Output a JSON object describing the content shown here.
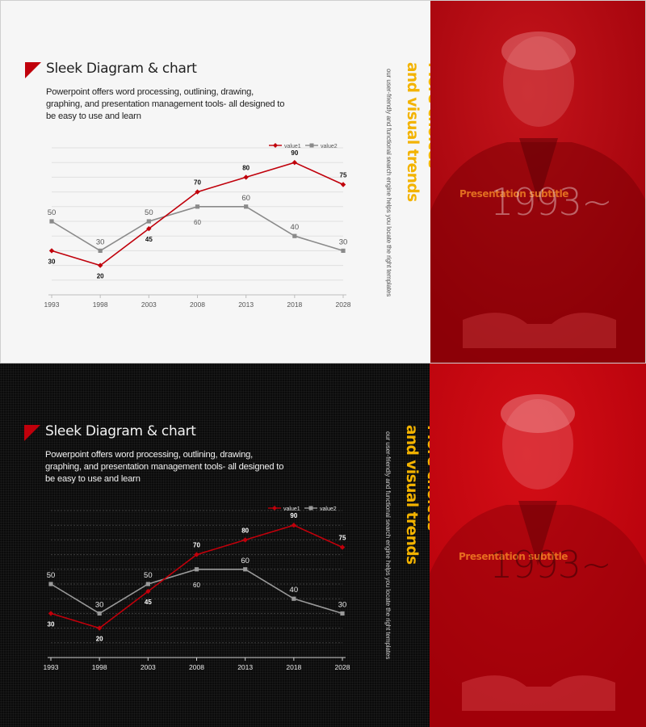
{
  "slides": {
    "title": "Sleek Diagram & chart",
    "description": "Powerpoint offers word processing, outlining, drawing, graphing, and presentation management tools- all designed to be easy to use and learn",
    "headline_line1": "More choices",
    "headline_line2": "and visual trends",
    "tagline": "our user-friendly and functional search engine helps you locate the right templates",
    "year_text": "1993~",
    "presentation_subtitle": "Presentation subtitle"
  },
  "colors": {
    "accent_red": "#c0000b",
    "accent_gold": "#f3b300",
    "series1": "#c0000b",
    "series2": "#8a8a8a"
  },
  "chart_data": {
    "type": "line",
    "categories": [
      "1993",
      "1998",
      "2003",
      "2008",
      "2013",
      "2018",
      "2028"
    ],
    "series": [
      {
        "name": "value1",
        "values": [
          30,
          20,
          45,
          70,
          80,
          90,
          75
        ]
      },
      {
        "name": "value2",
        "values": [
          50,
          30,
          50,
          60,
          60,
          40,
          30
        ]
      }
    ],
    "ylim": [
      0,
      100
    ],
    "grid": true,
    "legend": "top-right",
    "data_labels": true
  }
}
